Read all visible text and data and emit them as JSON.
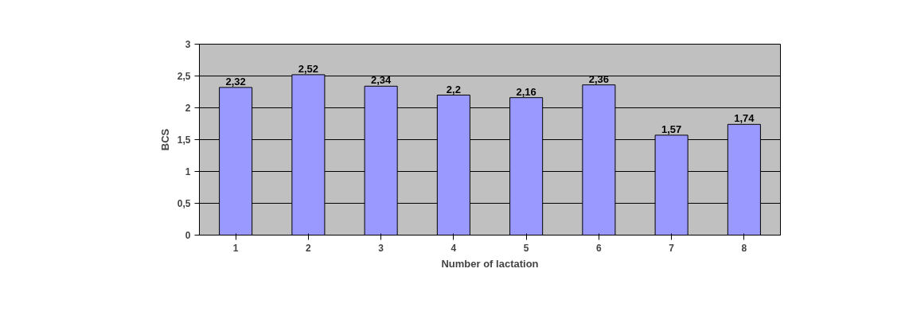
{
  "chart_data": {
    "type": "bar",
    "categories": [
      "1",
      "2",
      "3",
      "4",
      "5",
      "6",
      "7",
      "8"
    ],
    "series": [
      {
        "color": "#9999ff",
        "values": [
          2.32,
          2.52,
          2.34,
          2.2,
          2.16,
          2.36,
          1.57,
          1.74
        ],
        "value_labels": [
          "2,32",
          "2,52",
          "2,34",
          "2,2",
          "2,16",
          "2,36",
          "1,57",
          "1,74"
        ]
      }
    ],
    "xlabel": "Number of lactation",
    "ylabel": "BCS",
    "ylim": [
      0,
      3
    ],
    "yticks": [
      0,
      {
        "value": 0.5,
        "label": "0,5"
      },
      1,
      {
        "value": 1.5,
        "label": "1,5"
      },
      2,
      {
        "value": 2.5,
        "label": "2,5"
      },
      3
    ],
    "grid": "y"
  }
}
